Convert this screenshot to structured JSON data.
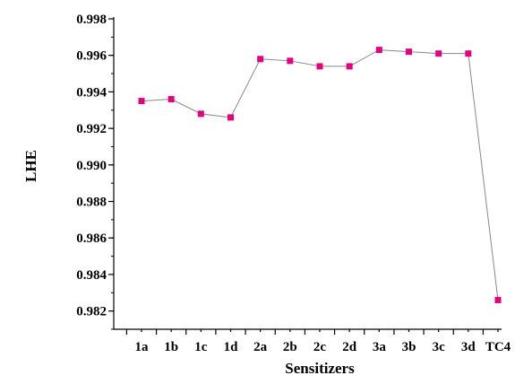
{
  "chart_data": {
    "type": "line",
    "title": "",
    "xlabel": "Sensitizers",
    "ylabel": "LHE",
    "categories": [
      "1a",
      "1b",
      "1c",
      "1d",
      "2a",
      "2b",
      "2c",
      "2d",
      "3a",
      "3b",
      "3c",
      "3d",
      "TC4"
    ],
    "series": [
      {
        "values": [
          0.9935,
          0.9936,
          0.9928,
          0.9926,
          0.9958,
          0.9957,
          0.9954,
          0.9954,
          0.9963,
          0.9962,
          0.9961,
          0.9961,
          0.9826
        ],
        "color": "#e6007e",
        "line_color": "#888888",
        "marker": "square"
      }
    ],
    "ylim": [
      0.981,
      0.998
    ],
    "yticks": [
      0.982,
      0.984,
      0.986,
      0.988,
      0.99,
      0.992,
      0.994,
      0.996,
      0.998
    ],
    "ytick_labels": [
      "0.982",
      "0.984",
      "0.986",
      "0.988",
      "0.990",
      "0.992",
      "0.994",
      "0.996",
      "0.998"
    ],
    "grid": false,
    "legend": "none"
  }
}
